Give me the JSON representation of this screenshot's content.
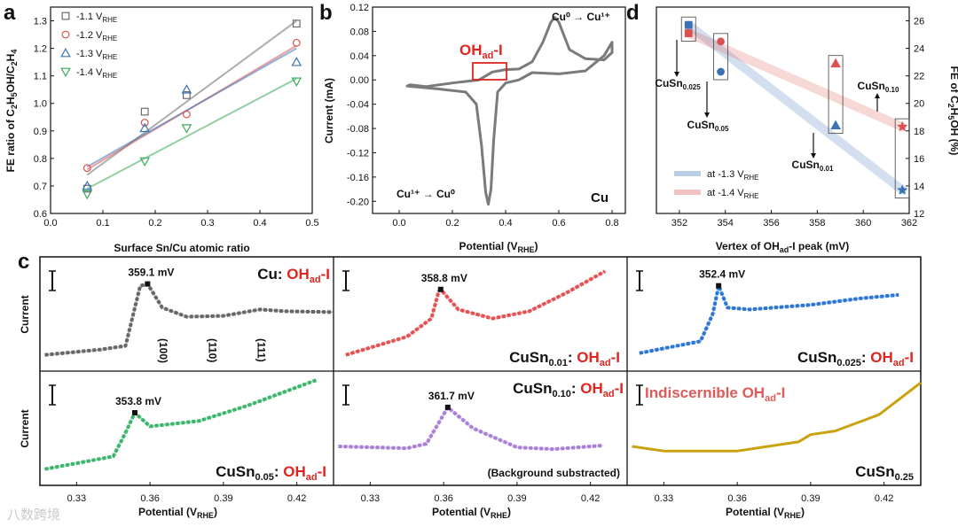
{
  "chart_data": [
    {
      "id": "a",
      "panel_label": "a",
      "type": "scatter",
      "xlabel": "Surface Sn/Cu atomic ratio",
      "ylabel": "FE ratio of C2H5OH/C2H4",
      "xlim": [
        0,
        0.5
      ],
      "ylim": [
        0.6,
        1.35
      ],
      "xticks": [
        "0.0",
        "0.1",
        "0.2",
        "0.3",
        "0.4",
        "0.5"
      ],
      "yticks": [
        "0.6",
        "0.7",
        "0.8",
        "0.9",
        "1.0",
        "1.1",
        "1.2",
        "1.3"
      ],
      "series": [
        {
          "name": "-1.1 V",
          "sub": "RHE",
          "marker": "square",
          "color": "#6b6b6b",
          "x": [
            0.07,
            0.18,
            0.26,
            0.47
          ],
          "y": [
            0.69,
            0.97,
            1.03,
            1.29
          ],
          "fit": [
            [
              0.07,
              0.74
            ],
            [
              0.47,
              1.3
            ]
          ]
        },
        {
          "name": "-1.2 V",
          "sub": "RHE",
          "marker": "circle",
          "color": "#d9534f",
          "x": [
            0.07,
            0.18,
            0.26,
            0.47
          ],
          "y": [
            0.765,
            0.93,
            0.96,
            1.22
          ],
          "fit": [
            [
              0.07,
              0.76
            ],
            [
              0.47,
              1.21
            ]
          ]
        },
        {
          "name": "-1.3 V",
          "sub": "RHE",
          "marker": "triangle-up",
          "color": "#3a72b5",
          "x": [
            0.07,
            0.18,
            0.26,
            0.47
          ],
          "y": [
            0.7,
            0.91,
            1.05,
            1.15
          ],
          "fit": [
            [
              0.07,
              0.77
            ],
            [
              0.47,
              1.2
            ]
          ]
        },
        {
          "name": "-1.4 V",
          "sub": "RHE",
          "marker": "triangle-down",
          "color": "#3aa85b",
          "x": [
            0.07,
            0.18,
            0.26,
            0.47
          ],
          "y": [
            0.67,
            0.79,
            0.91,
            1.08
          ],
          "fit": [
            [
              0.07,
              0.69
            ],
            [
              0.47,
              1.09
            ]
          ]
        }
      ]
    },
    {
      "id": "b",
      "panel_label": "b",
      "type": "line",
      "xlabel": "Potential (V",
      "xlabel_sub": "RHE",
      "xlabel_end": ")",
      "ylabel": "Current (mA)",
      "xlim": [
        -0.1,
        0.85
      ],
      "ylim": [
        -0.22,
        0.12
      ],
      "xticks": [
        "0.0",
        "0.2",
        "0.4",
        "0.6",
        "0.8"
      ],
      "yticks": [
        "-0.20",
        "-0.16",
        "-0.12",
        "-0.08",
        "-0.04",
        "0.00",
        "0.04",
        "0.08",
        "0.12"
      ],
      "cv_upper": [
        [
          0.04,
          -0.008
        ],
        [
          0.1,
          -0.011
        ],
        [
          0.2,
          -0.005
        ],
        [
          0.3,
          0.0
        ],
        [
          0.35,
          0.013
        ],
        [
          0.4,
          0.017
        ],
        [
          0.45,
          0.018
        ],
        [
          0.5,
          0.03
        ],
        [
          0.54,
          0.062
        ],
        [
          0.57,
          0.095
        ],
        [
          0.585,
          0.103
        ],
        [
          0.6,
          0.095
        ],
        [
          0.64,
          0.05
        ],
        [
          0.7,
          0.035
        ],
        [
          0.77,
          0.033
        ],
        [
          0.8,
          0.045
        ]
      ],
      "cv_lower": [
        [
          0.8,
          0.045
        ],
        [
          0.8,
          0.062
        ],
        [
          0.77,
          0.04
        ],
        [
          0.7,
          0.015
        ],
        [
          0.6,
          0.01
        ],
        [
          0.5,
          0.012
        ],
        [
          0.45,
          0.0
        ],
        [
          0.4,
          -0.005
        ],
        [
          0.37,
          -0.02
        ],
        [
          0.355,
          -0.1
        ],
        [
          0.345,
          -0.18
        ],
        [
          0.335,
          -0.205
        ],
        [
          0.325,
          -0.185
        ],
        [
          0.31,
          -0.11
        ],
        [
          0.29,
          -0.04
        ],
        [
          0.25,
          -0.02
        ],
        [
          0.15,
          -0.015
        ],
        [
          0.03,
          -0.01
        ],
        [
          0.04,
          -0.008
        ]
      ],
      "annotations": [
        "Cu⁰ → Cu¹⁺",
        "Cu¹⁺ → Cu⁰",
        "Cu"
      ],
      "highlight_label": "OH",
      "highlight_sub": "ad",
      "highlight_suffix": "-I"
    },
    {
      "id": "d",
      "panel_label": "d",
      "type": "scatter",
      "xlabel": "Vertex of OH",
      "xlabel_sub": "ad",
      "xlabel_end": "-I peak (mV)",
      "ylabel": "FE of C2H5OH (%)",
      "xlim": [
        351,
        362
      ],
      "ylim": [
        12,
        27
      ],
      "xticks": [
        "352",
        "354",
        "356",
        "358",
        "360",
        "362"
      ],
      "yticks": [
        "12",
        "14",
        "16",
        "18",
        "20",
        "22",
        "24",
        "26"
      ],
      "series": [
        {
          "name": "at -1.3 V",
          "sub": "RHE",
          "color": "#3a72b5",
          "x": [
            352.4,
            353.8,
            358.8,
            361.7
          ],
          "y": [
            25.7,
            22.3,
            18.4,
            13.7
          ],
          "markers": [
            "square",
            "circle",
            "triangle-up",
            "star"
          ]
        },
        {
          "name": "at -1.4 V",
          "sub": "RHE",
          "color": "#d9534f",
          "x": [
            352.4,
            353.8,
            358.8,
            361.7
          ],
          "y": [
            25.1,
            24.5,
            22.9,
            18.3
          ],
          "markers": [
            "square",
            "circle",
            "triangle-up",
            "star"
          ]
        }
      ],
      "labels": [
        "CuSn0.025",
        "CuSn0.05",
        "CuSn0.01",
        "CuSn0.10"
      ]
    },
    {
      "id": "c",
      "panel_label": "c",
      "type": "line",
      "xlabel": "Potential (V",
      "xlabel_sub": "RHE",
      "xlabel_end": ")",
      "ylabel": "Current",
      "xlim": [
        0.315,
        0.435
      ],
      "xticks": [
        "0.33",
        "0.36",
        "0.39",
        "0.42"
      ],
      "subplots": [
        {
          "sample": "Cu",
          "sample_sub": "",
          "peak_label": "359.1 mV",
          "color": "#666666",
          "title_style": "inline-top",
          "peaks": [
            "(100)",
            "(110)",
            "(111)"
          ],
          "curve": [
            [
              0.317,
              0.1
            ],
            [
              0.34,
              0.16
            ],
            [
              0.35,
              0.2
            ],
            [
              0.356,
              0.86
            ],
            [
              0.359,
              0.88
            ],
            [
              0.365,
              0.62
            ],
            [
              0.375,
              0.52
            ],
            [
              0.39,
              0.53
            ],
            [
              0.405,
              0.6
            ],
            [
              0.415,
              0.58
            ],
            [
              0.435,
              0.57
            ]
          ]
        },
        {
          "sample": "CuSn",
          "sample_sub": "0.01",
          "peak_label": "358.8 mV",
          "color": "#e55050",
          "curve": [
            [
              0.32,
              0.1
            ],
            [
              0.345,
              0.3
            ],
            [
              0.355,
              0.5
            ],
            [
              0.358,
              0.8
            ],
            [
              0.3588,
              0.82
            ],
            [
              0.366,
              0.6
            ],
            [
              0.38,
              0.5
            ],
            [
              0.395,
              0.58
            ],
            [
              0.41,
              0.78
            ],
            [
              0.426,
              1.02
            ]
          ]
        },
        {
          "sample": "CuSn",
          "sample_sub": "0.025",
          "peak_label": "352.4 mV",
          "color": "#2a76d2",
          "curve": [
            [
              0.32,
              0.12
            ],
            [
              0.345,
              0.25
            ],
            [
              0.35,
              0.55
            ],
            [
              0.3524,
              0.86
            ],
            [
              0.356,
              0.62
            ],
            [
              0.365,
              0.6
            ],
            [
              0.39,
              0.65
            ],
            [
              0.41,
              0.72
            ],
            [
              0.426,
              0.76
            ]
          ]
        },
        {
          "sample": "CuSn",
          "sample_sub": "0.05",
          "peak_label": "353.8 mV",
          "color": "#3bb56c",
          "curve": [
            [
              0.317,
              0.1
            ],
            [
              0.345,
              0.24
            ],
            [
              0.35,
              0.5
            ],
            [
              0.3538,
              0.72
            ],
            [
              0.36,
              0.57
            ],
            [
              0.38,
              0.63
            ],
            [
              0.4,
              0.8
            ],
            [
              0.425,
              1.05
            ],
            [
              0.428,
              1.08
            ]
          ]
        },
        {
          "sample": "CuSn",
          "sample_sub": "0.10",
          "peak_label": "361.7 mV",
          "color": "#a97fd6",
          "note": "(Background substracted)",
          "curve": [
            [
              0.317,
              0.35
            ],
            [
              0.345,
              0.33
            ],
            [
              0.353,
              0.38
            ],
            [
              0.3617,
              0.78
            ],
            [
              0.372,
              0.55
            ],
            [
              0.39,
              0.34
            ],
            [
              0.405,
              0.32
            ],
            [
              0.425,
              0.36
            ]
          ]
        },
        {
          "sample": "CuSn",
          "sample_sub": "0.25",
          "color": "#c9a20d",
          "note": "Indiscernible OHad-I",
          "curve": [
            [
              0.317,
              0.35
            ],
            [
              0.33,
              0.3
            ],
            [
              0.36,
              0.3
            ],
            [
              0.385,
              0.4
            ],
            [
              0.39,
              0.48
            ],
            [
              0.4,
              0.52
            ],
            [
              0.418,
              0.7
            ],
            [
              0.435,
              1.05
            ]
          ]
        }
      ]
    }
  ],
  "labels": {
    "panel_c_suffix": ": ",
    "ohad_main": "OH",
    "ohad_sub": "ad",
    "ohad_suffix": "-I",
    "indiscernible_prefix": "Indiscernible ",
    "cu_oxidation": "Cu⁰ → Cu¹⁺",
    "cu_reduction": "Cu¹⁺ → Cu⁰",
    "cu_sample": "Cu",
    "current_axis": "Current"
  },
  "watermark": "八数跨境"
}
